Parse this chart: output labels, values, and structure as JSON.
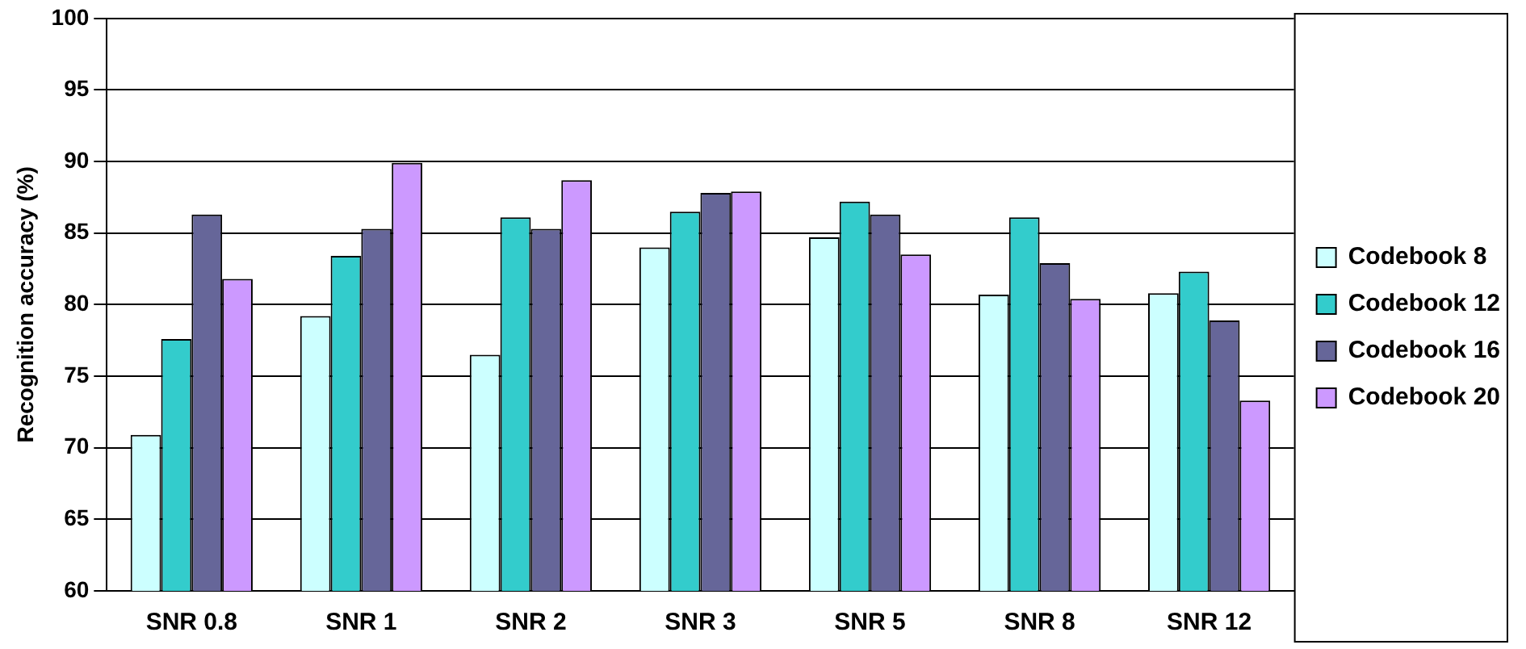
{
  "chart_data": {
    "type": "bar",
    "ylabel": "Recognition accuracy (%)",
    "categories": [
      "SNR 0.8",
      "SNR 1",
      "SNR 2",
      "SNR 3",
      "SNR 5",
      "SNR 8",
      "SNR 12"
    ],
    "series": [
      {
        "name": "Codebook 8",
        "color": "#ccffff",
        "values": [
          70.9,
          79.2,
          76.5,
          84.0,
          84.7,
          80.7,
          80.8
        ]
      },
      {
        "name": "Codebook 12",
        "color": "#33cccc",
        "values": [
          77.6,
          83.4,
          86.1,
          86.5,
          87.2,
          86.1,
          82.3
        ]
      },
      {
        "name": "Codebook 16",
        "color": "#666699",
        "values": [
          86.3,
          85.3,
          85.3,
          87.8,
          86.3,
          82.9,
          78.9
        ]
      },
      {
        "name": "Codebook 20",
        "color": "#cc99ff",
        "values": [
          81.8,
          89.9,
          88.7,
          87.9,
          83.5,
          80.4,
          73.3
        ]
      }
    ],
    "ylim": [
      60,
      100
    ],
    "yticks": [
      60,
      65,
      70,
      75,
      80,
      85,
      90,
      95,
      100
    ],
    "grid": "y",
    "legend": "right"
  }
}
